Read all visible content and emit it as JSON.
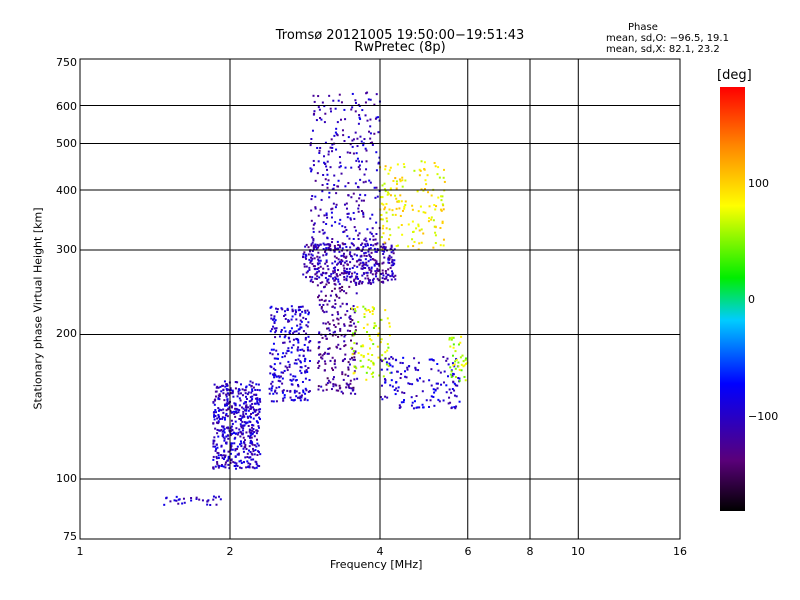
{
  "chart_data": {
    "type": "scatter",
    "title": "Tromsø 20121005 19:50:00−19:51:43",
    "subtitle": "RwPretec (8p)",
    "xlabel": "Frequency [MHz]",
    "ylabel": "Stationary phase Virtual Height [km]",
    "x_scale": "log",
    "y_scale": "log",
    "xlim": [
      1,
      16
    ],
    "ylim": [
      75,
      750
    ],
    "x_ticks": [
      "1",
      "2",
      "4",
      "6",
      "8",
      "10",
      "16"
    ],
    "y_ticks": [
      "750",
      "600",
      "500",
      "400",
      "300",
      "200",
      "100",
      "75"
    ],
    "grid": true,
    "phase_legend": {
      "title": "Phase",
      "line_o": "mean, sd,O:  −96.5, 19.1",
      "line_x": "mean, sd,X:  82.1, 23.2"
    },
    "colorbar": {
      "unit": "[deg]",
      "ticks": [
        "100",
        "0",
        "−100"
      ],
      "range": [
        -180,
        180
      ],
      "colormap": "rainbow"
    },
    "clusters": [
      {
        "x": [
          1.85,
          2.3
        ],
        "y": [
          105,
          160
        ],
        "phase": -100,
        "n": 500
      },
      {
        "x": [
          2.4,
          2.9
        ],
        "y": [
          145,
          230
        ],
        "phase": -95,
        "n": 260
      },
      {
        "x": [
          2.8,
          4.3
        ],
        "y": [
          255,
          310
        ],
        "phase": -110,
        "n": 420
      },
      {
        "x": [
          2.9,
          4.0
        ],
        "y": [
          310,
          640
        ],
        "phase": -105,
        "n": 280
      },
      {
        "x": [
          3.0,
          3.6
        ],
        "y": [
          150,
          260
        ],
        "phase": -125,
        "n": 220
      },
      {
        "x": [
          4.0,
          5.4
        ],
        "y": [
          300,
          460
        ],
        "phase": 85,
        "n": 160
      },
      {
        "x": [
          3.5,
          4.2
        ],
        "y": [
          160,
          230
        ],
        "phase": 70,
        "n": 90
      },
      {
        "x": [
          4.0,
          5.8
        ],
        "y": [
          140,
          180
        ],
        "phase": -95,
        "n": 150
      },
      {
        "x": [
          5.5,
          6.0
        ],
        "y": [
          160,
          200
        ],
        "phase": 60,
        "n": 40
      },
      {
        "x": [
          1.45,
          1.95
        ],
        "y": [
          88,
          92
        ],
        "phase": -100,
        "n": 30
      }
    ]
  }
}
